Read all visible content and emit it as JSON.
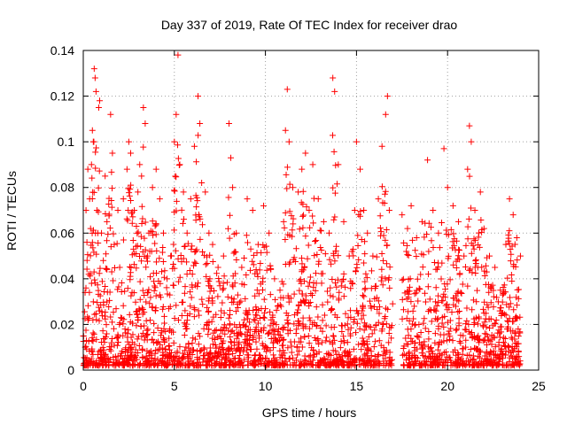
{
  "chart_data": {
    "type": "scatter",
    "title": "Day 337 of 2019, Rate Of TEC Index for receiver drao",
    "xlabel": "GPS time / hours",
    "ylabel": "ROTI / TECUs",
    "xlim": [
      0,
      25
    ],
    "ylim": [
      0,
      0.14
    ],
    "xticks": [
      0,
      5,
      10,
      15,
      20,
      25
    ],
    "yticks": [
      0,
      0.02,
      0.04,
      0.06,
      0.08,
      0.1,
      0.12,
      0.14
    ],
    "xtick_labels": [
      "0",
      "5",
      "10",
      "15",
      "20",
      "25"
    ],
    "ytick_labels": [
      "0",
      "0.02",
      "0.04",
      "0.06",
      "0.08",
      "0.1",
      "0.12",
      "0.14"
    ],
    "grid": true,
    "marker": "plus",
    "color": "#ff0000",
    "data_gap_hours": [
      17.0,
      17.5
    ],
    "series": [
      {
        "values": [
          [
            0.0,
            0.015
          ],
          [
            0.1,
            0.034
          ],
          [
            0.15,
            0.07
          ],
          [
            0.2,
            0.056
          ],
          [
            0.25,
            0.088
          ],
          [
            0.3,
            0.042
          ],
          [
            0.35,
            0.075
          ],
          [
            0.4,
            0.062
          ],
          [
            0.45,
            0.09
          ],
          [
            0.5,
            0.105
          ],
          [
            0.55,
            0.1
          ],
          [
            0.6,
            0.132
          ],
          [
            0.65,
            0.128
          ],
          [
            0.7,
            0.122
          ],
          [
            0.75,
            0.07
          ],
          [
            0.8,
            0.06
          ],
          [
            0.85,
            0.115
          ],
          [
            0.9,
            0.118
          ],
          [
            1.0,
            0.06
          ],
          [
            1.1,
            0.048
          ],
          [
            1.2,
            0.085
          ],
          [
            1.3,
            0.065
          ],
          [
            1.5,
            0.112
          ],
          [
            1.6,
            0.095
          ],
          [
            1.7,
            0.055
          ],
          [
            1.9,
            0.07
          ],
          [
            2.0,
            0.045
          ],
          [
            2.2,
            0.075
          ],
          [
            2.4,
            0.088
          ],
          [
            2.5,
            0.1
          ],
          [
            2.6,
            0.095
          ],
          [
            2.8,
            0.07
          ],
          [
            3.0,
            0.078
          ],
          [
            3.1,
            0.09
          ],
          [
            3.2,
            0.085
          ],
          [
            3.3,
            0.115
          ],
          [
            3.4,
            0.108
          ],
          [
            3.6,
            0.06
          ],
          [
            3.8,
            0.08
          ],
          [
            4.0,
            0.088
          ],
          [
            4.2,
            0.075
          ],
          [
            4.4,
            0.06
          ],
          [
            4.6,
            0.04
          ],
          [
            4.8,
            0.05
          ],
          [
            5.0,
            0.1
          ],
          [
            5.1,
            0.112
          ],
          [
            5.2,
            0.138
          ],
          [
            5.3,
            0.09
          ],
          [
            5.5,
            0.078
          ],
          [
            5.7,
            0.06
          ],
          [
            5.9,
            0.075
          ],
          [
            6.1,
            0.098
          ],
          [
            6.3,
            0.12
          ],
          [
            6.4,
            0.108
          ],
          [
            6.5,
            0.082
          ],
          [
            6.7,
            0.078
          ],
          [
            6.9,
            0.06
          ],
          [
            7.1,
            0.055
          ],
          [
            7.4,
            0.045
          ],
          [
            7.7,
            0.05
          ],
          [
            8.0,
            0.108
          ],
          [
            8.1,
            0.093
          ],
          [
            8.2,
            0.08
          ],
          [
            8.4,
            0.06
          ],
          [
            8.7,
            0.045
          ],
          [
            9.0,
            0.075
          ],
          [
            9.3,
            0.07
          ],
          [
            9.6,
            0.055
          ],
          [
            9.9,
            0.072
          ],
          [
            10.2,
            0.06
          ],
          [
            10.5,
            0.04
          ],
          [
            10.8,
            0.035
          ],
          [
            11.0,
            0.065
          ],
          [
            11.1,
            0.105
          ],
          [
            11.2,
            0.123
          ],
          [
            11.3,
            0.1
          ],
          [
            11.5,
            0.08
          ],
          [
            11.8,
            0.078
          ],
          [
            12.0,
            0.088
          ],
          [
            12.2,
            0.095
          ],
          [
            12.4,
            0.07
          ],
          [
            12.6,
            0.09
          ],
          [
            12.9,
            0.075
          ],
          [
            13.2,
            0.065
          ],
          [
            13.5,
            0.06
          ],
          [
            13.7,
            0.128
          ],
          [
            13.8,
            0.122
          ],
          [
            14.0,
            0.09
          ],
          [
            14.3,
            0.065
          ],
          [
            14.6,
            0.05
          ],
          [
            14.9,
            0.07
          ],
          [
            15.0,
            0.1
          ],
          [
            15.2,
            0.088
          ],
          [
            15.4,
            0.07
          ],
          [
            15.6,
            0.06
          ],
          [
            15.9,
            0.05
          ],
          [
            16.2,
            0.075
          ],
          [
            16.4,
            0.098
          ],
          [
            16.6,
            0.112
          ],
          [
            16.7,
            0.12
          ],
          [
            16.8,
            0.07
          ],
          [
            17.5,
            0.068
          ],
          [
            17.8,
            0.062
          ],
          [
            18.0,
            0.072
          ],
          [
            18.3,
            0.058
          ],
          [
            18.6,
            0.065
          ],
          [
            18.9,
            0.092
          ],
          [
            19.2,
            0.07
          ],
          [
            19.5,
            0.06
          ],
          [
            19.8,
            0.097
          ],
          [
            20.0,
            0.08
          ],
          [
            20.3,
            0.072
          ],
          [
            20.6,
            0.065
          ],
          [
            20.9,
            0.05
          ],
          [
            21.1,
            0.088
          ],
          [
            21.2,
            0.107
          ],
          [
            21.3,
            0.1
          ],
          [
            21.5,
            0.07
          ],
          [
            21.8,
            0.078
          ],
          [
            22.0,
            0.062
          ],
          [
            22.3,
            0.05
          ],
          [
            22.6,
            0.045
          ],
          [
            22.9,
            0.035
          ],
          [
            23.2,
            0.055
          ],
          [
            23.4,
            0.075
          ],
          [
            23.6,
            0.068
          ],
          [
            23.8,
            0.058
          ],
          [
            24.0,
            0.05
          ]
        ]
      }
    ]
  }
}
